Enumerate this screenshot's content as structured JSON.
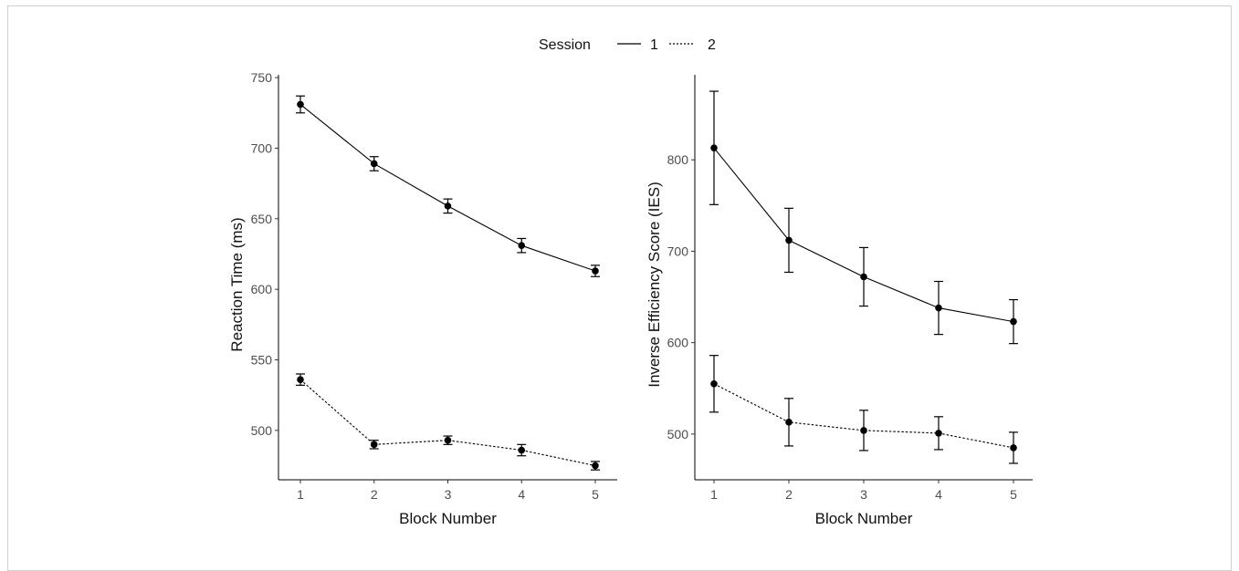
{
  "legend": {
    "title": "Session",
    "entries": [
      {
        "label": "1",
        "line_style": "solid"
      },
      {
        "label": "2",
        "line_style": "dotted"
      }
    ],
    "placement": "top"
  },
  "colors": {
    "line": "#000000",
    "axis": "#000000",
    "tick_label": "#4d4d4d"
  },
  "chart_data": [
    {
      "type": "line",
      "xlabel": "Block Number",
      "ylabel": "Reaction Time (ms)",
      "x": [
        1,
        2,
        3,
        4,
        5
      ],
      "xticks": [
        1,
        2,
        3,
        4,
        5
      ],
      "ylim": [
        465,
        752
      ],
      "yticks": [
        500,
        550,
        600,
        650,
        700,
        750
      ],
      "grid": false,
      "series": [
        {
          "name": "1",
          "line_style": "solid",
          "values": [
            731,
            689,
            659,
            631,
            613
          ],
          "error": [
            6,
            5,
            5,
            5,
            4
          ]
        },
        {
          "name": "2",
          "line_style": "dotted",
          "values": [
            536,
            490,
            493,
            486,
            475
          ],
          "error": [
            4,
            3,
            3,
            4,
            3
          ]
        }
      ]
    },
    {
      "type": "line",
      "xlabel": "Block Number",
      "ylabel": "Inverse Efficiency Score (IES)",
      "x": [
        1,
        2,
        3,
        4,
        5
      ],
      "xticks": [
        1,
        2,
        3,
        4,
        5
      ],
      "ylim": [
        450,
        893
      ],
      "yticks": [
        500,
        600,
        700,
        800
      ],
      "grid": false,
      "series": [
        {
          "name": "1",
          "line_style": "solid",
          "values": [
            813,
            712,
            672,
            638,
            623
          ],
          "error": [
            62,
            35,
            32,
            29,
            24
          ]
        },
        {
          "name": "2",
          "line_style": "dotted",
          "values": [
            555,
            513,
            504,
            501,
            485
          ],
          "error": [
            31,
            26,
            22,
            18,
            17
          ]
        }
      ]
    }
  ]
}
